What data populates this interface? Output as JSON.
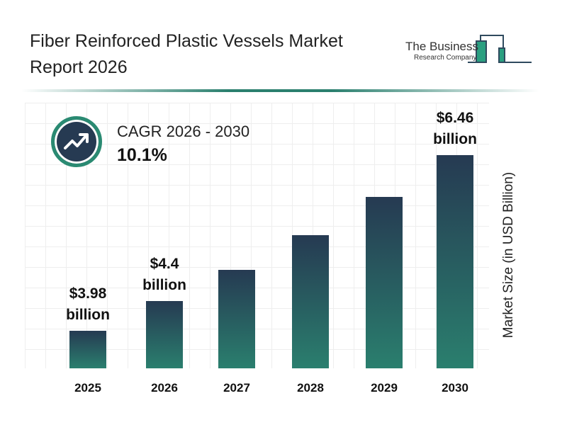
{
  "title": "Fiber Reinforced Plastic Vessels Market Report 2026",
  "logo": {
    "line1": "The Business",
    "line2": "Research Company"
  },
  "cagr": {
    "label": "CAGR 2026 - 2030",
    "value": "10.1%",
    "icon": "trending-up-icon"
  },
  "colors": {
    "bar_top": "#263a52",
    "bar_bottom": "#2a7f6e",
    "accent": "#2a8a72"
  },
  "chart_data": {
    "type": "bar",
    "categories": [
      "2025",
      "2026",
      "2027",
      "2028",
      "2029",
      "2030"
    ],
    "values": [
      3.98,
      4.4,
      4.84,
      5.33,
      5.87,
      6.46
    ],
    "data_labels": [
      {
        "category": "2025",
        "line1": "$3.98",
        "line2": "billion"
      },
      {
        "category": "2026",
        "line1": "$4.4",
        "line2": "billion"
      },
      {
        "category": "2030",
        "line1": "$6.46",
        "line2": "billion"
      }
    ],
    "ylabel": "Market Size (in USD Billion)",
    "xlabel": "",
    "grid": true
  }
}
